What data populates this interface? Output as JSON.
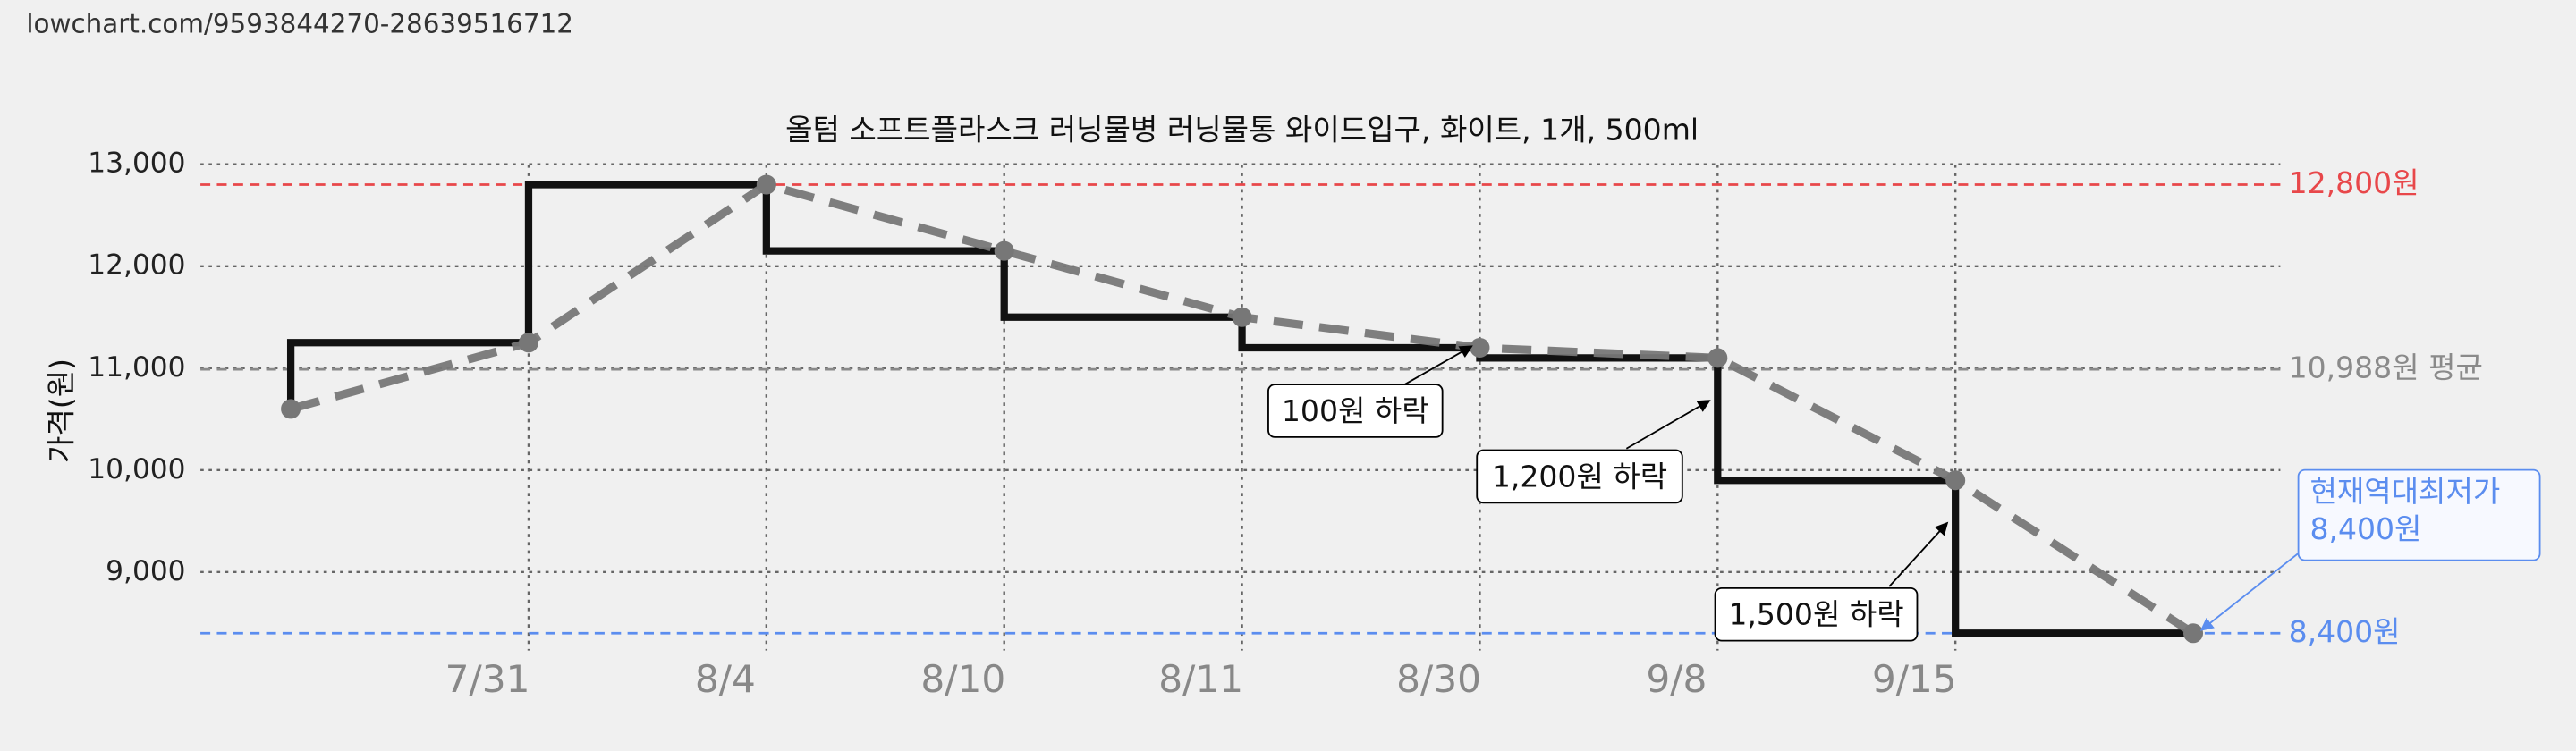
{
  "url": "lowchart.com/9593844270-28639516712",
  "chart_data": {
    "type": "line",
    "title": "올텀 소프트플라스크 러닝물병 러닝물통 와이드입구, 화이트, 1개, 500ml",
    "y_label": "가격(원)",
    "categories": [
      null,
      "7/31",
      "8/4",
      "8/10",
      "8/11",
      "8/30",
      "9/8",
      "9/15",
      null
    ],
    "values": [
      10600,
      11250,
      12800,
      12150,
      11500,
      11200,
      11100,
      9900,
      8400
    ],
    "color": "#111111",
    "trend_color": "#777777",
    "ylim": [
      8230,
      13030
    ],
    "yticks": [
      {
        "value": 9000,
        "label": "9,000"
      },
      {
        "value": 10000,
        "label": "10,000"
      },
      {
        "value": 11000,
        "label": "11,000"
      },
      {
        "value": 12000,
        "label": "12,000"
      },
      {
        "value": 13000,
        "label": "13,000"
      }
    ],
    "grid": true,
    "reference_lines": [
      {
        "value": 12800,
        "label": "12,800원",
        "color": "#e8474a"
      },
      {
        "value": 10988,
        "label": "10,988원 평균",
        "color": "#8a8a8a"
      },
      {
        "value": 8400,
        "label": "8,400원",
        "color": "#5b8def"
      }
    ],
    "annotations": [
      "100원 하락",
      "1,200원 하락",
      "1,500원 하락"
    ],
    "lowest_label": [
      "현재역대최저가",
      "8,400원"
    ]
  }
}
